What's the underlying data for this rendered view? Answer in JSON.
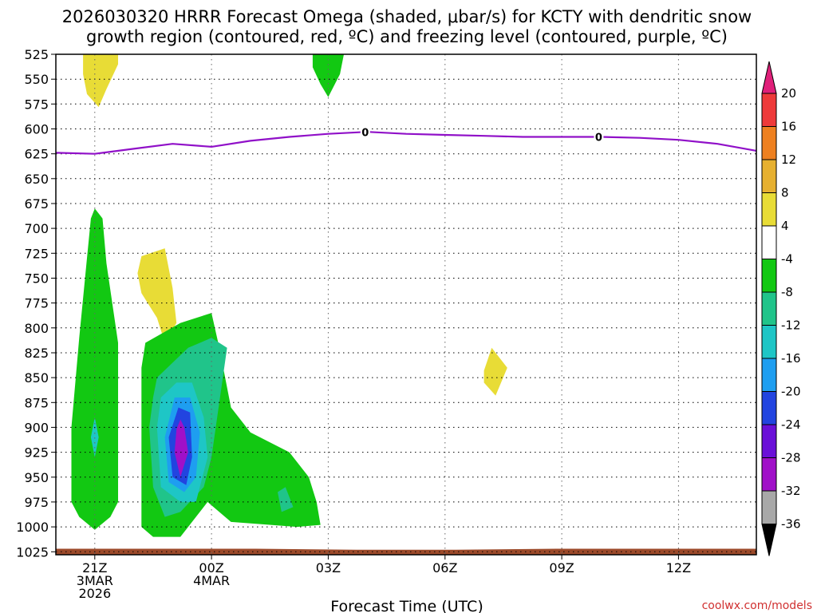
{
  "chart_data": {
    "type": "heatmap",
    "title_line1": "2026030320 HRRR Forecast Omega (shaded, μbar/s) for KCTY with dendritic snow",
    "title_line2": "growth region (contoured, red, ºC) and freezing level (contoured, purple, ºC)",
    "xlabel": "Forecast Time (UTC)",
    "credit": "coolwx.com/models",
    "x_range_hours": [
      -1.0,
      17.0
    ],
    "x_ticks": [
      {
        "hour": 0,
        "lines": [
          "21Z",
          "3MAR",
          "2026"
        ]
      },
      {
        "hour": 3,
        "lines": [
          "00Z",
          "4MAR"
        ]
      },
      {
        "hour": 6,
        "lines": [
          "03Z"
        ]
      },
      {
        "hour": 9,
        "lines": [
          "06Z"
        ]
      },
      {
        "hour": 12,
        "lines": [
          "09Z"
        ]
      },
      {
        "hour": 15,
        "lines": [
          "12Z"
        ]
      }
    ],
    "y_ticks_hPa": [
      525,
      550,
      575,
      600,
      625,
      650,
      675,
      700,
      725,
      750,
      775,
      800,
      825,
      850,
      875,
      900,
      925,
      950,
      975,
      1000,
      1025
    ],
    "y_range_hPa": [
      525,
      1028
    ],
    "colorbar": {
      "labels": [
        "20",
        "16",
        "12",
        "8",
        "4",
        "-4",
        "-8",
        "-12",
        "-16",
        "-20",
        "-24",
        "-28",
        "-32",
        "-36"
      ],
      "bins": [
        {
          "range": "16 to 20",
          "color": "#ee3a3a"
        },
        {
          "range": "12 to 16",
          "color": "#ee8020"
        },
        {
          "range": "8 to 12",
          "color": "#e6b030"
        },
        {
          "range": "4 to 8",
          "color": "#e8dc36"
        },
        {
          "range": "-4 to 4",
          "color": "#ffffff"
        },
        {
          "range": "-8 to -4",
          "color": "#12c812"
        },
        {
          "range": "-12 to -8",
          "color": "#20c48a"
        },
        {
          "range": "-16 to -12",
          "color": "#1ec6c6"
        },
        {
          "range": "-20 to -16",
          "color": "#1e9ef0"
        },
        {
          "range": "-24 to -20",
          "color": "#2244e0"
        },
        {
          "range": "-28 to -24",
          "color": "#6a10d8"
        },
        {
          "range": "-32 to -28",
          "color": "#a010c8"
        },
        {
          "range": "-36 to -32",
          "color": "#a8a8a8"
        }
      ],
      "over_color": "#e0207a",
      "under_color": "#000000"
    },
    "freezing_level": {
      "label": "0",
      "label_hours": [
        6.95,
        12.95
      ],
      "points": [
        {
          "hour": -1.0,
          "hPa": 624
        },
        {
          "hour": 0.0,
          "hPa": 625
        },
        {
          "hour": 1.0,
          "hPa": 620
        },
        {
          "hour": 2.0,
          "hPa": 615
        },
        {
          "hour": 3.0,
          "hPa": 618
        },
        {
          "hour": 4.0,
          "hPa": 612
        },
        {
          "hour": 5.0,
          "hPa": 608
        },
        {
          "hour": 6.0,
          "hPa": 605
        },
        {
          "hour": 7.0,
          "hPa": 603
        },
        {
          "hour": 8.0,
          "hPa": 605
        },
        {
          "hour": 9.0,
          "hPa": 606
        },
        {
          "hour": 10.0,
          "hPa": 607
        },
        {
          "hour": 11.0,
          "hPa": 608
        },
        {
          "hour": 12.0,
          "hPa": 608
        },
        {
          "hour": 13.0,
          "hPa": 608
        },
        {
          "hour": 14.0,
          "hPa": 609
        },
        {
          "hour": 15.0,
          "hPa": 611
        },
        {
          "hour": 16.0,
          "hPa": 615
        },
        {
          "hour": 17.0,
          "hPa": 622
        }
      ],
      "color": "#9010c8"
    },
    "omega_regions": [
      {
        "name": "upper-positive-21z",
        "color": "#e8dc36",
        "points": [
          [
            -0.3,
            525
          ],
          [
            0.6,
            525
          ],
          [
            0.6,
            535
          ],
          [
            0.3,
            560
          ],
          [
            0.1,
            578
          ],
          [
            -0.2,
            565
          ],
          [
            -0.3,
            545
          ]
        ]
      },
      {
        "name": "upper-negative-03z",
        "color": "#12c812",
        "points": [
          [
            5.6,
            525
          ],
          [
            6.4,
            525
          ],
          [
            6.3,
            545
          ],
          [
            6.0,
            568
          ],
          [
            5.8,
            555
          ],
          [
            5.6,
            538
          ]
        ]
      },
      {
        "name": "midlevel-positive-0130z",
        "color": "#e8dc36",
        "points": [
          [
            1.2,
            728
          ],
          [
            1.8,
            720
          ],
          [
            2.0,
            760
          ],
          [
            2.1,
            795
          ],
          [
            1.8,
            815
          ],
          [
            1.6,
            790
          ],
          [
            1.2,
            765
          ],
          [
            1.1,
            745
          ]
        ]
      },
      {
        "name": "midlevel-positive-0715z",
        "color": "#e8dc36",
        "points": [
          [
            10.0,
            843
          ],
          [
            10.2,
            820
          ],
          [
            10.6,
            840
          ],
          [
            10.3,
            868
          ],
          [
            10.0,
            855
          ]
        ]
      },
      {
        "name": "lowlevel-negative-21z",
        "color": "#12c812",
        "points": [
          [
            0.0,
            680
          ],
          [
            0.2,
            690
          ],
          [
            0.3,
            735
          ],
          [
            0.6,
            815
          ],
          [
            0.6,
            900
          ],
          [
            0.6,
            975
          ],
          [
            0.4,
            990
          ],
          [
            0.0,
            1003
          ],
          [
            -0.4,
            990
          ],
          [
            -0.6,
            975
          ],
          [
            -0.6,
            900
          ],
          [
            -0.4,
            810
          ],
          [
            -0.2,
            730
          ],
          [
            -0.1,
            690
          ]
        ]
      },
      {
        "name": "lowlevel-mod-negative-21z",
        "color": "#1ec6c6",
        "points": [
          [
            0.0,
            890
          ],
          [
            0.1,
            910
          ],
          [
            0.0,
            930
          ],
          [
            -0.1,
            910
          ]
        ]
      },
      {
        "name": "lowlevel-negative-2330z",
        "color": "#12c812",
        "points": [
          [
            1.3,
            815
          ],
          [
            2.2,
            795
          ],
          [
            3.0,
            785
          ],
          [
            3.2,
            820
          ],
          [
            3.5,
            880
          ],
          [
            4.0,
            905
          ],
          [
            5.0,
            925
          ],
          [
            5.5,
            950
          ],
          [
            5.7,
            975
          ],
          [
            5.8,
            998
          ],
          [
            5.2,
            1000
          ],
          [
            3.5,
            995
          ],
          [
            2.9,
            975
          ],
          [
            2.7,
            985
          ],
          [
            2.2,
            1010
          ],
          [
            1.5,
            1010
          ],
          [
            1.2,
            1000
          ],
          [
            1.2,
            900
          ],
          [
            1.2,
            840
          ]
        ]
      },
      {
        "name": "lowlevel-mod-negative-2330z",
        "color": "#20c48a",
        "points": [
          [
            1.6,
            850
          ],
          [
            2.4,
            820
          ],
          [
            3.0,
            810
          ],
          [
            3.4,
            820
          ],
          [
            3.0,
            930
          ],
          [
            2.8,
            960
          ],
          [
            2.2,
            985
          ],
          [
            1.8,
            990
          ],
          [
            1.5,
            960
          ],
          [
            1.4,
            900
          ],
          [
            1.5,
            870
          ]
        ]
      },
      {
        "name": "lowlevel-mod-negative-02z",
        "color": "#20c48a",
        "points": [
          [
            4.9,
            960
          ],
          [
            5.1,
            980
          ],
          [
            4.8,
            985
          ],
          [
            4.7,
            965
          ]
        ]
      },
      {
        "name": "lowlevel-cyan-2330z",
        "color": "#1ec6c6",
        "points": [
          [
            2.1,
            855
          ],
          [
            2.5,
            855
          ],
          [
            2.8,
            890
          ],
          [
            2.9,
            930
          ],
          [
            2.6,
            975
          ],
          [
            2.2,
            975
          ],
          [
            1.7,
            960
          ],
          [
            1.6,
            900
          ],
          [
            1.7,
            870
          ]
        ]
      },
      {
        "name": "lowlevel-lightblue-2330z",
        "color": "#1e9ef0",
        "points": [
          [
            2.05,
            870
          ],
          [
            2.45,
            870
          ],
          [
            2.7,
            905
          ],
          [
            2.6,
            950
          ],
          [
            2.3,
            965
          ],
          [
            1.9,
            955
          ],
          [
            1.8,
            910
          ]
        ]
      },
      {
        "name": "lowlevel-blue-2330z",
        "color": "#2244e0",
        "points": [
          [
            2.15,
            880
          ],
          [
            2.45,
            885
          ],
          [
            2.5,
            930
          ],
          [
            2.35,
            958
          ],
          [
            2.0,
            950
          ],
          [
            1.9,
            910
          ]
        ]
      },
      {
        "name": "lowlevel-purple-2330z",
        "color": "#a010c8",
        "points": [
          [
            2.2,
            892
          ],
          [
            2.3,
            900
          ],
          [
            2.4,
            925
          ],
          [
            2.2,
            950
          ],
          [
            2.05,
            925
          ],
          [
            2.1,
            902
          ]
        ]
      }
    ],
    "terrain": {
      "color": "#9c4a2a",
      "surface_hPa": [
        1022,
        1022,
        1022,
        1023,
        1023,
        1022,
        1022,
        1022
      ]
    }
  }
}
